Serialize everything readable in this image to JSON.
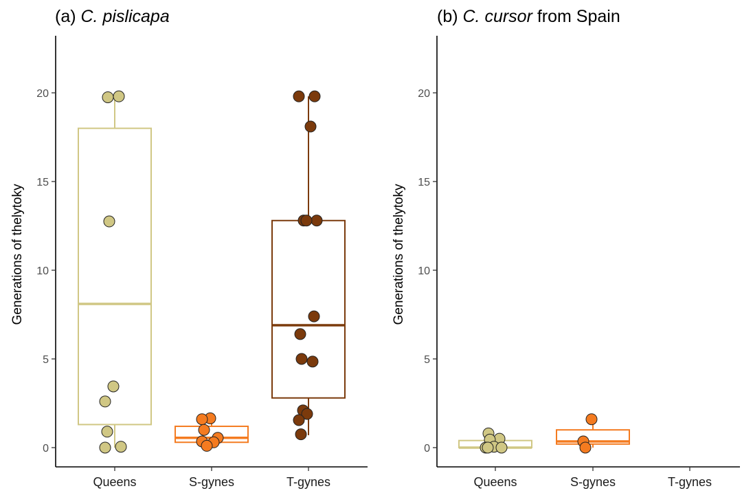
{
  "chart_data": [
    {
      "type": "box",
      "title_prefix": "(a) ",
      "title_italic": "C. pislicapa",
      "title_suffix": "",
      "ylabel": "Generations of thelytoky",
      "xlabel": "",
      "ylim": [
        -1,
        23
      ],
      "yticks": [
        0,
        5,
        10,
        15,
        20
      ],
      "grid": false,
      "categories": [
        "Queens",
        "S-gynes",
        "T-gynes"
      ],
      "colors": [
        "#d0c784",
        "#f47b20",
        "#7b3a0c"
      ],
      "boxes": [
        {
          "category": "Queens",
          "q1": 1.3,
          "median": 8.1,
          "q3": 18.0,
          "whisker_low": 0,
          "whisker_high": 19.8
        },
        {
          "category": "S-gynes",
          "q1": 0.3,
          "median": 0.55,
          "q3": 1.2,
          "whisker_low": 0.1,
          "whisker_high": 1.65
        },
        {
          "category": "T-gynes",
          "q1": 2.8,
          "median": 6.9,
          "q3": 12.8,
          "whisker_low": 0.7,
          "whisker_high": 19.8
        }
      ],
      "points": [
        {
          "category": "Queens",
          "values": [
            19.75,
            19.8,
            12.75,
            3.45,
            2.6,
            0.9,
            0.05,
            0.0
          ]
        },
        {
          "category": "S-gynes",
          "values": [
            1.65,
            1.6,
            1.0,
            0.55,
            0.35,
            0.3,
            0.1
          ]
        },
        {
          "category": "T-gynes",
          "values": [
            19.8,
            19.8,
            18.1,
            12.8,
            12.8,
            12.8,
            7.4,
            6.4,
            5.0,
            4.85,
            2.1,
            1.9,
            1.55,
            0.75
          ]
        }
      ]
    },
    {
      "type": "box",
      "title_prefix": "(b) ",
      "title_italic": "C. cursor",
      "title_suffix": " from Spain",
      "ylabel": "Generations of thelytoky",
      "xlabel": "",
      "ylim": [
        -1,
        23
      ],
      "yticks": [
        0,
        5,
        10,
        15,
        20
      ],
      "grid": false,
      "categories": [
        "Queens",
        "S-gynes",
        "T-gynes"
      ],
      "colors": [
        "#d0c784",
        "#f47b20",
        "#7b3a0c"
      ],
      "boxes": [
        {
          "category": "Queens",
          "q1": 0.0,
          "median": 0.0,
          "q3": 0.4,
          "whisker_low": 0.0,
          "whisker_high": 0.4
        },
        {
          "category": "S-gynes",
          "q1": 0.2,
          "median": 0.35,
          "q3": 1.0,
          "whisker_low": 0.0,
          "whisker_high": 1.6
        }
      ],
      "points": [
        {
          "category": "Queens",
          "values": [
            0.8,
            0.5,
            0.45,
            0.05,
            0.0,
            0.0,
            0.0
          ]
        },
        {
          "category": "S-gynes",
          "values": [
            1.6,
            0.35,
            0.0
          ]
        },
        {
          "category": "T-gynes",
          "values": []
        }
      ]
    }
  ]
}
